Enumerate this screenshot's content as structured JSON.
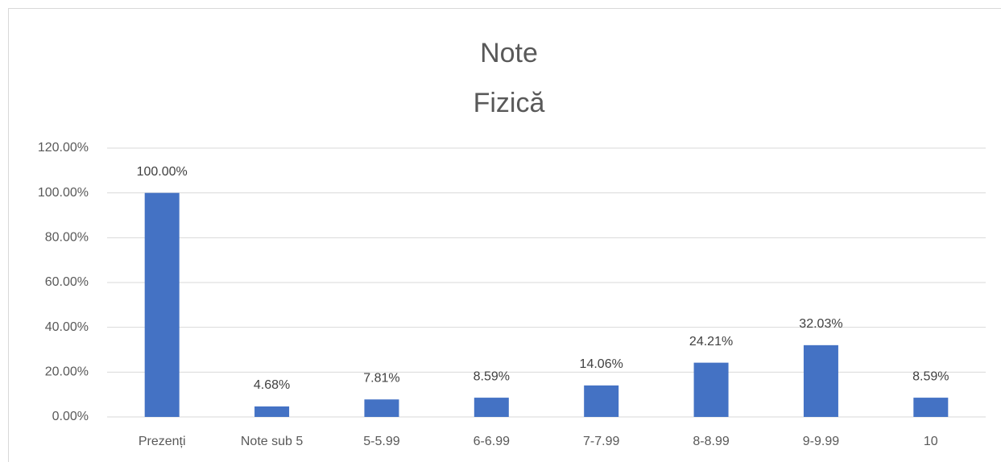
{
  "chart_data": {
    "type": "bar",
    "title": "Note",
    "subtitle": "Fizică",
    "categories": [
      "Prezenți",
      "Note sub 5",
      "5-5.99",
      "6-6.99",
      "7-7.99",
      "8-8.99",
      "9-9.99",
      "10"
    ],
    "values": [
      100,
      4.68,
      7.81,
      8.59,
      14.06,
      24.21,
      32.03,
      8.59
    ],
    "value_labels": [
      "100.00%",
      "4.68%",
      "7.81%",
      "8.59%",
      "14.06%",
      "24.21%",
      "32.03%",
      "8.59%"
    ],
    "color": "#4472c4",
    "ylim": [
      0,
      120
    ],
    "yticks": [
      {
        "value": 0,
        "label": "0.00%"
      },
      {
        "value": 20,
        "label": "20.00%"
      },
      {
        "value": 40,
        "label": "40.00%"
      },
      {
        "value": 60,
        "label": "60.00%"
      },
      {
        "value": 80,
        "label": "80.00%"
      },
      {
        "value": 100,
        "label": "100.00%"
      },
      {
        "value": 120,
        "label": "120.00%"
      }
    ],
    "grid": true
  }
}
